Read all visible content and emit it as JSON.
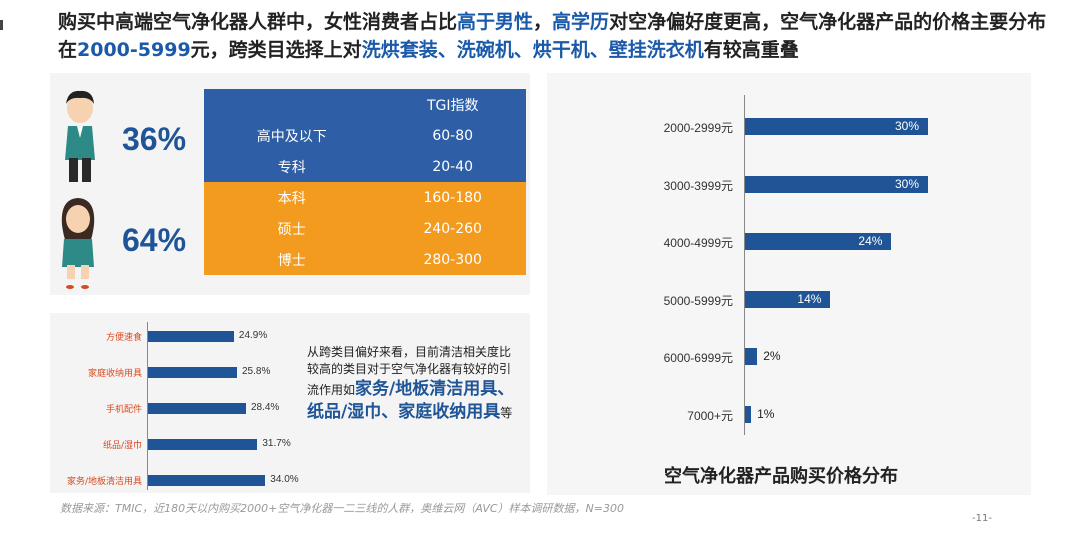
{
  "header": {
    "p1": "购买中高端空气净化器人群中，女性消费者占比",
    "h1": "高于男性",
    "p2": "，",
    "h2": "高学历",
    "p3": "对空净偏好度更高，空气净化器产品的价格主要分布在",
    "h3": "2000-5999",
    "p4": "元，跨类目选择上对",
    "h4": "洗烘套装、洗碗机、烘干机、壁挂洗衣机",
    "p5": "有较高重叠"
  },
  "gender": {
    "male_pct": "36%",
    "female_pct": "64%"
  },
  "tgi": {
    "header": "TGI指数",
    "rows": [
      {
        "label": "高中及以下",
        "value": "60-80"
      },
      {
        "label": "专科",
        "value": "20-40"
      },
      {
        "label": "本科",
        "value": "160-180"
      },
      {
        "label": "硕士",
        "value": "240-260"
      },
      {
        "label": "博士",
        "value": "280-300"
      }
    ]
  },
  "cross_category": {
    "type": "bar",
    "categories": [
      "方便速食",
      "家庭收纳用具",
      "手机配件",
      "纸品/湿巾",
      "家务/地板清洁用具"
    ],
    "values": [
      24.9,
      25.8,
      28.4,
      31.7,
      34.0
    ],
    "labels": [
      "24.9%",
      "25.8%",
      "28.4%",
      "31.7%",
      "34.0%"
    ]
  },
  "note": {
    "text": "从跨类目偏好来看，目前清洁相关度比较高的类目对于空气净化器有较好的引流作用如",
    "highlight": "家务/地板清洁用具、纸品/湿巾、家庭收纳用具",
    "suffix": "等"
  },
  "chart_data": {
    "type": "bar",
    "title": "空气净化器产品购买价格分布",
    "categories": [
      "2000-2999元",
      "3000-3999元",
      "4000-4999元",
      "5000-5999元",
      "6000-6999元",
      "7000+元"
    ],
    "values": [
      30,
      30,
      24,
      14,
      2,
      1
    ],
    "labels": [
      "30%",
      "30%",
      "24%",
      "14%",
      "2%",
      "1%"
    ]
  },
  "source": "数据来源：TMIC，近180天以内购买2000+空气净化器一二三线的人群，奥维云网（AVC）样本调研数据，N=300",
  "page_number": "-11-",
  "colors": {
    "primary": "#1f5597",
    "highlight_text": "#1a5aa8",
    "tgi_blue": "#2e5ea6",
    "tgi_orange": "#f39b1e",
    "category_label": "#d9491f"
  }
}
